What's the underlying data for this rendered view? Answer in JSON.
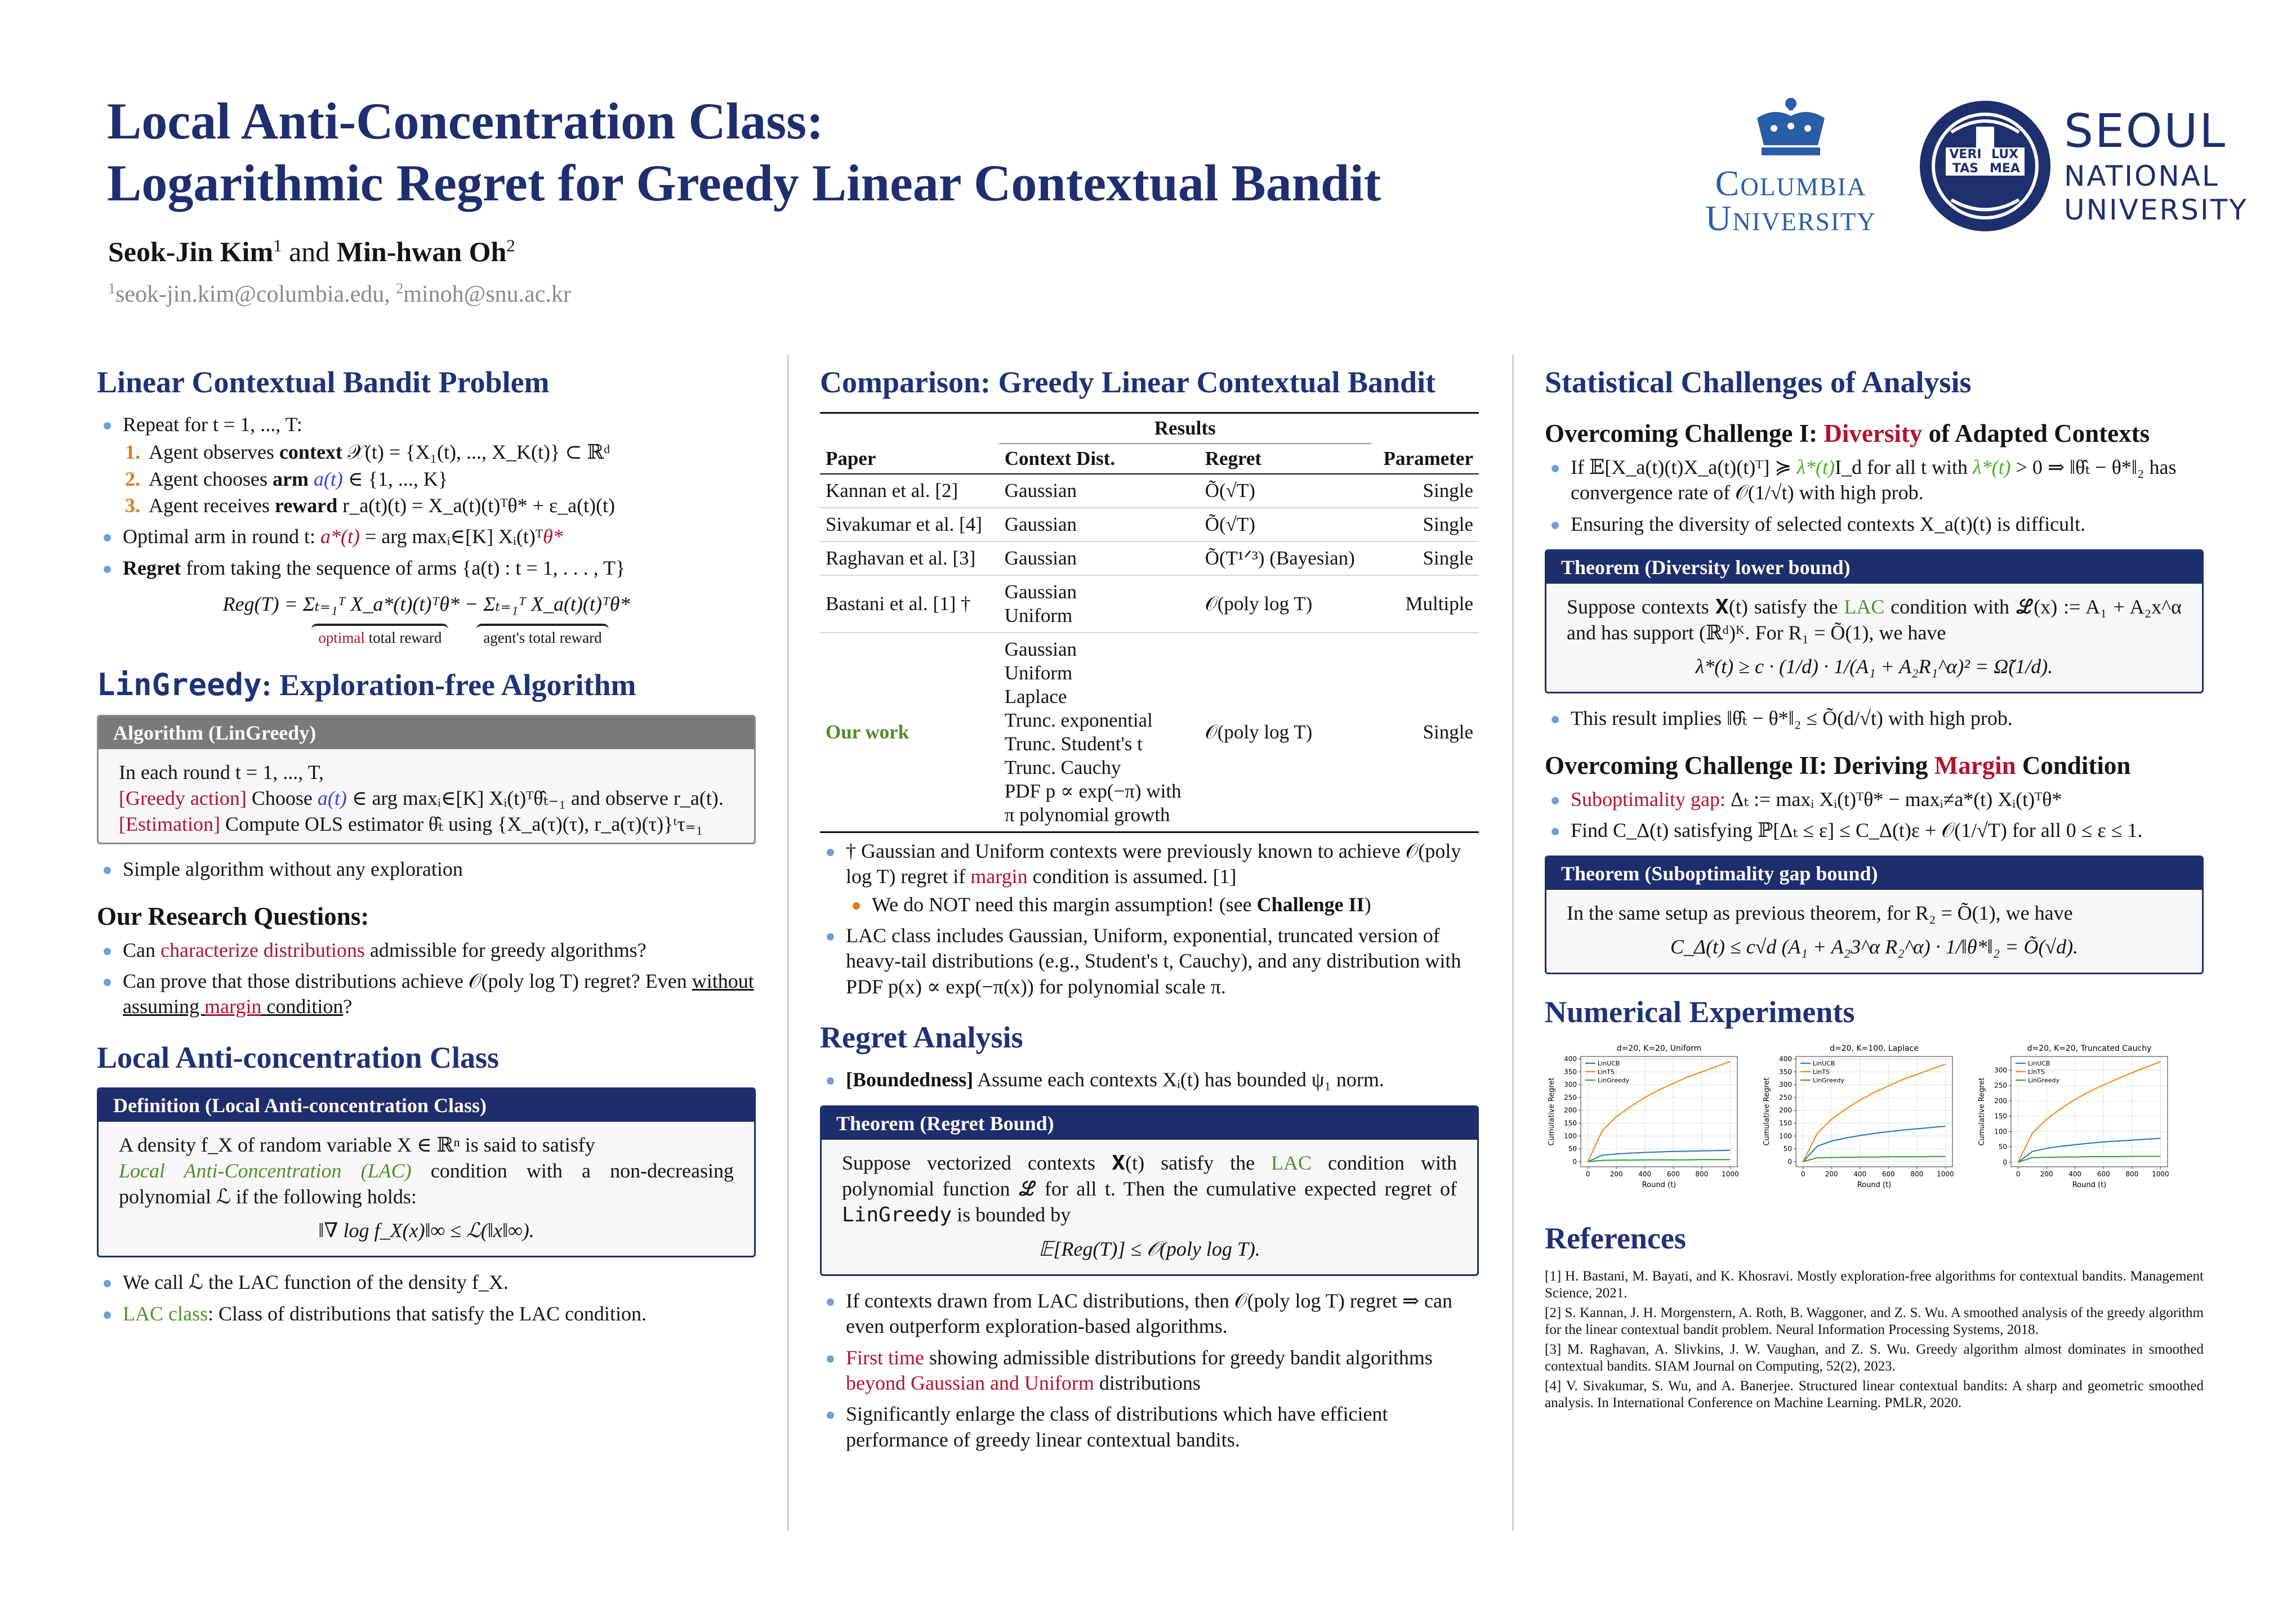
{
  "header": {
    "title": [
      "Local Anti-Concentration Class:",
      "Logarithmic Regret for Greedy Linear Contextual Bandit"
    ],
    "authors": [
      {
        "text": "Seok-Jin Kim",
        "bold": true
      },
      {
        "text": "1",
        "sup": true
      },
      " and ",
      {
        "text": "Min-hwan Oh",
        "bold": true
      },
      {
        "text": "2",
        "sup": true
      }
    ],
    "emails": [
      {
        "text": "1",
        "sup": true
      },
      "seok-jin.kim@columbia.edu, ",
      {
        "text": "2",
        "sup": true
      },
      "minoh@snu.ac.kr"
    ],
    "columbia": [
      "Columbia",
      "University"
    ],
    "snu": [
      "SEOUL",
      "NATIONAL",
      "UNIVERSITY"
    ],
    "snu_emblem": [
      "VERI",
      "LUX",
      "TAS",
      "MEA"
    ]
  },
  "columns": [
    [
      {
        "heading": "Linear Contextual Bandit Problem"
      },
      {
        "bullets": [
          {
            "text": "Repeat for t = 1, ..., T:",
            "sub": [
              {
                "marker": "1.",
                "text": [
                  "Agent observes ",
                  {
                    "text": "context",
                    "bold": true
                  },
                  " 𝒳(t) = {X₁(t), ..., X_K(t)} ⊂ ℝᵈ"
                ]
              },
              {
                "marker": "2.",
                "text": [
                  "Agent chooses ",
                  {
                    "text": "arm",
                    "bold": true
                  },
                  " ",
                  {
                    "text": "a(t)",
                    "color": "#3445d8",
                    "italic": true
                  },
                  " ∈ {1, ..., K}"
                ]
              },
              {
                "marker": "3.",
                "text": [
                  "Agent receives ",
                  {
                    "text": "reward",
                    "bold": true
                  },
                  " r_a(t)(t) = X_a(t)(t)ᵀθ* + ε_a(t)(t)"
                ]
              }
            ]
          },
          [
            "Optimal arm in round t: ",
            {
              "text": "a*(t)",
              "color": "#b0132f",
              "italic": true
            },
            " = arg maxᵢ∈[K] Xᵢ(t)ᵀ",
            {
              "text": "θ*",
              "color": "#b0132f",
              "italic": true
            }
          ],
          [
            {
              "text": "Regret",
              "bold": true
            },
            " from taking the sequence of arms {a(t) : t = 1, . . . , T}"
          ]
        ]
      },
      {
        "equation": "Reg(T) = Σₜ₌₁ᵀ X_a*(t)(t)ᵀθ* − Σₜ₌₁ᵀ X_a(t)(t)ᵀθ*"
      },
      {
        "underbraces": [
          [
            {
              "text": "optimal",
              "color": "#b0132f"
            },
            " total reward"
          ],
          "agent's total reward"
        ]
      },
      {
        "heading": [
          {
            "text": "LinGreedy",
            "mono": true
          },
          ": Exploration-free Algorithm"
        ]
      },
      {
        "box": {
          "style": "gray",
          "title": "Algorithm (LinGreedy)",
          "lines": [
            "In each round t = 1, ..., T,",
            [
              {
                "text": "[Greedy action]",
                "color": "#b0132f"
              },
              " Choose ",
              {
                "text": "a(t)",
                "color": "#3445d8",
                "italic": true
              },
              " ∈ arg maxᵢ∈[K] Xᵢ(t)ᵀθ̂ₜ₋₁ and observe r_a(t)."
            ],
            [
              {
                "text": "[Estimation]",
                "color": "#b0132f"
              },
              " Compute OLS estimator θ̂ₜ using {X_a(τ)(τ), r_a(τ)(τ)}ᵗτ₌₁"
            ]
          ]
        }
      },
      {
        "bullets": [
          "Simple algorithm without any exploration"
        ]
      },
      {
        "subheading": "Our Research Questions:"
      },
      {
        "bullets": [
          [
            "Can ",
            {
              "text": "characterize distributions",
              "color": "#b0132f"
            },
            " admissible for greedy algorithms?"
          ],
          [
            "Can prove that those distributions achieve 𝒪(poly log T) regret? Even ",
            {
              "text": "without assuming ",
              "underline": true
            },
            {
              "text": "margin",
              "color": "#b0132f",
              "underline": true
            },
            {
              "text": " condition",
              "underline": true
            },
            "?"
          ]
        ]
      },
      {
        "heading": "Local Anti-concentration Class"
      },
      {
        "box": {
          "title": "Definition (Local Anti-concentration Class)",
          "lines": [
            "A density f_X of random variable X ∈ ℝⁿ is said to satisfy",
            [
              {
                "text": "Local Anti-Concentration (LAC)",
                "color": "#4f8f2a",
                "italic": true
              },
              " condition with a non-decreasing polynomial ℒ if the following holds:"
            ]
          ],
          "equation": "‖∇ log f_X(x)‖∞ ≤ ℒ(‖x‖∞)."
        }
      },
      {
        "bullets": [
          "We call ℒ the LAC function of the density f_X.",
          [
            {
              "text": "LAC class",
              "color": "#4f8f2a"
            },
            ": Class of distributions that satisfy the LAC condition."
          ]
        ]
      }
    ],
    [
      {
        "heading": "Comparison: Greedy Linear Contextual Bandit"
      },
      {
        "table": {
          "group": "Results",
          "columns": [
            "Paper",
            "Context Dist.",
            "Regret",
            "Parameter"
          ],
          "rows": [
            [
              "Kannan et al. [2]",
              "Gaussian",
              "Õ(√T)",
              "Single"
            ],
            [
              "Sivakumar et al. [4]",
              "Gaussian",
              "Õ(√T)",
              "Single"
            ],
            [
              "Raghavan et al. [3]",
              "Gaussian",
              "Õ(T¹ᐟ³) (Bayesian)",
              "Single"
            ],
            [
              "Bastani et al. [1] †",
              "Gaussian\nUniform",
              "𝒪(poly log T)",
              "Multiple"
            ],
            [
              {
                "text": "Our work",
                "color": "#4f8f2a",
                "bold": true
              },
              "Gaussian\nUniform\nLaplace\nTrunc. exponential\nTrunc. Student's t\nTrunc. Cauchy\nPDF p ∝ exp(−π) with\nπ polynomial growth",
              "𝒪(poly log T)",
              "Single"
            ]
          ]
        }
      },
      {
        "bullets": [
          {
            "text": [
              "† Gaussian and Uniform contexts were previously known to achieve 𝒪(poly log T) regret if ",
              {
                "text": "margin",
                "color": "#b0132f"
              },
              " condition is assumed. [1]"
            ],
            "sub": [
              {
                "bullet_color": "#e07b1a",
                "text": [
                  "We do NOT need this margin assumption! (see ",
                  {
                    "text": "Challenge II",
                    "bold": true
                  },
                  ")"
                ]
              }
            ]
          },
          "LAC class includes Gaussian, Uniform, exponential, truncated version of heavy-tail distributions (e.g., Student's t, Cauchy), and any distribution with PDF p(x) ∝ exp(−π(x)) for polynomial scale π."
        ]
      },
      {
        "heading": "Regret Analysis"
      },
      {
        "bullets": [
          [
            {
              "text": "[Boundedness]",
              "bold": true
            },
            " Assume each contexts Xᵢ(t) has bounded ψ₁ norm."
          ]
        ]
      },
      {
        "box": {
          "title": "Theorem (Regret Bound)",
          "lines": [
            [
              "Suppose vectorized contexts 𝐗(t) satisfy the ",
              {
                "text": "LAC",
                "color": "#4f8f2a"
              },
              " condition with polynomial function ℒ for all t. Then the cumulative expected regret of ",
              {
                "text": "LinGreedy",
                "mono": true
              },
              " is bounded by"
            ]
          ],
          "equation": "𝔼[Reg(T)] ≤ 𝒪(poly log T)."
        }
      },
      {
        "bullets": [
          "If contexts drawn from LAC distributions, then 𝒪(poly log T) regret ⇒ can even outperform exploration-based algorithms.",
          [
            {
              "text": "First time",
              "color": "#b0132f"
            },
            " showing admissible distributions for greedy bandit algorithms ",
            {
              "text": "beyond Gaussian and Uniform",
              "color": "#b0132f"
            },
            " distributions"
          ],
          "Significantly enlarge the class of distributions which have efficient performance of greedy linear contextual bandits."
        ]
      }
    ],
    [
      {
        "heading": "Statistical Challenges of Analysis"
      },
      {
        "subheading": [
          "Overcoming Challenge I: ",
          {
            "text": "Diversity",
            "color": "#b0132f"
          },
          " of Adapted Contexts"
        ]
      },
      {
        "bullets": [
          [
            "If 𝔼[X_a(t)(t)X_a(t)(t)ᵀ] ≽ ",
            {
              "text": "λ*(t)",
              "color": "#4fae2a",
              "italic": true
            },
            "I_d for all t with ",
            {
              "text": "λ*(t)",
              "color": "#4fae2a",
              "italic": true
            },
            " > 0 ⇒ ‖θ̂ₜ − θ*‖₂ has convergence rate of 𝒪(1/√t) with high prob."
          ],
          "Ensuring the diversity of selected contexts X_a(t)(t) is difficult."
        ]
      },
      {
        "box": {
          "title": "Theorem (Diversity lower bound)",
          "lines": [
            [
              "Suppose contexts 𝐗(t) satisfy the ",
              {
                "text": "LAC",
                "color": "#4f8f2a"
              },
              " condition with ℒ(x) := A₁ + A₂x^α and has support (ℝᵈ)ᴷ. For R₁ = Õ(1), we have"
            ]
          ],
          "equation": "λ*(t) ≥ c · (1/d) · 1/(A₁ + A₂R₁^α)² = Ω̃(1/d)."
        }
      },
      {
        "bullets": [
          "This result implies ‖θ̂ₜ − θ*‖₂ ≤ Õ(d/√t) with high prob."
        ]
      },
      {
        "subheading": [
          "Overcoming Challenge II: Deriving ",
          {
            "text": "Margin",
            "color": "#b0132f"
          },
          " Condition"
        ]
      },
      {
        "bullets": [
          [
            {
              "text": "Suboptimality gap:",
              "color": "#b0132f"
            },
            " Δₜ := maxᵢ Xᵢ(t)ᵀθ* − maxᵢ≠a*(t) Xᵢ(t)ᵀθ*"
          ],
          "Find C_Δ(t) satisfying ℙ[Δₜ ≤ ε] ≤ C_Δ(t)ε + 𝒪(1/√T) for all 0 ≤ ε ≤ 1."
        ]
      },
      {
        "box": {
          "title": "Theorem (Suboptimality gap bound)",
          "lines": [
            "In the same setup as previous theorem, for R₂ = Õ(1), we have"
          ],
          "equation": "C_Δ(t) ≤ c√d (A₁ + A₂3^α R₂^α) · 1/‖θ*‖₂ = Õ(√d)."
        }
      },
      {
        "heading": "Numerical Experiments"
      },
      {
        "charts": [
          {
            "type": "line",
            "title": "d=20, K=20, Uniform",
            "xlabel": "Round (t)",
            "ylabel": "Cumulative Regret",
            "x": [
              0,
              100,
              200,
              300,
              400,
              500,
              600,
              700,
              800,
              900,
              1000
            ],
            "xlim": [
              -50,
              1050
            ],
            "xticks": [
              0,
              200,
              400,
              600,
              800,
              1000
            ],
            "ylim": [
              -20,
              410
            ],
            "yticks": [
              0,
              50,
              100,
              150,
              200,
              250,
              300,
              350,
              400
            ],
            "grid": true,
            "series": [
              {
                "name": "LinUCB",
                "color": "#1f77b4",
                "values": [
                  0,
                  25,
                  30,
                  33,
                  36,
                  38,
                  40,
                  41,
                  42,
                  43,
                  44
                ]
              },
              {
                "name": "LinTS",
                "color": "#ff7f0e",
                "values": [
                  0,
                  120,
                  175,
                  215,
                  250,
                  280,
                  305,
                  330,
                  350,
                  370,
                  390
                ]
              },
              {
                "name": "LinGreedy",
                "color": "#2ca02c",
                "values": [
                  0,
                  5,
                  6,
                  6,
                  7,
                  7,
                  7,
                  7,
                  8,
                  8,
                  8
                ]
              }
            ]
          },
          {
            "type": "line",
            "title": "d=20, K=100, Laplace",
            "xlabel": "Round (t)",
            "ylabel": "Cumulative Regret",
            "x": [
              0,
              100,
              200,
              300,
              400,
              500,
              600,
              700,
              800,
              900,
              1000
            ],
            "xlim": [
              -50,
              1050
            ],
            "xticks": [
              0,
              200,
              400,
              600,
              800,
              1000
            ],
            "ylim": [
              -20,
              410
            ],
            "yticks": [
              0,
              50,
              100,
              150,
              200,
              250,
              300,
              350,
              400
            ],
            "grid": true,
            "series": [
              {
                "name": "LinUCB",
                "color": "#1f77b4",
                "values": [
                  0,
                  60,
                  80,
                  92,
                  102,
                  110,
                  117,
                  123,
                  128,
                  133,
                  138
                ]
              },
              {
                "name": "LinTS",
                "color": "#ff7f0e",
                "values": [
                  0,
                  110,
                  165,
                  205,
                  240,
                  270,
                  295,
                  320,
                  340,
                  360,
                  380
                ]
              },
              {
                "name": "LinGreedy",
                "color": "#2ca02c",
                "values": [
                  0,
                  15,
                  16,
                  17,
                  18,
                  18,
                  19,
                  19,
                  19,
                  20,
                  20
                ]
              }
            ]
          },
          {
            "type": "line",
            "title": "d=20, K=20, Truncated Cauchy",
            "xlabel": "Round (t)",
            "ylabel": "Cumulative Regret",
            "x": [
              0,
              100,
              200,
              300,
              400,
              500,
              600,
              700,
              800,
              900,
              1000
            ],
            "xlim": [
              -50,
              1050
            ],
            "xticks": [
              0,
              200,
              400,
              600,
              800,
              1000
            ],
            "ylim": [
              -15,
              345
            ],
            "yticks": [
              0,
              50,
              100,
              150,
              200,
              250,
              300
            ],
            "grid": true,
            "series": [
              {
                "name": "LinUCB",
                "color": "#1f77b4",
                "values": [
                  0,
                  35,
                  45,
                  52,
                  57,
                  62,
                  66,
                  69,
                  72,
                  75,
                  78
                ]
              },
              {
                "name": "LinTS",
                "color": "#ff7f0e",
                "values": [
                  0,
                  95,
                  140,
                  175,
                  205,
                  230,
                  252,
                  272,
                  292,
                  310,
                  328
                ]
              },
              {
                "name": "LinGreedy",
                "color": "#2ca02c",
                "values": [
                  0,
                  15,
                  16,
                  17,
                  17,
                  18,
                  18,
                  18,
                  19,
                  19,
                  19
                ]
              }
            ]
          }
        ]
      },
      {
        "heading": "References"
      },
      {
        "references": [
          "[1] H. Bastani, M. Bayati, and K. Khosravi. Mostly exploration-free algorithms for contextual bandits. Management Science, 2021.",
          "[2] S. Kannan, J. H. Morgenstern, A. Roth, B. Waggoner, and Z. S. Wu. A smoothed analysis of the greedy algorithm for the linear contextual bandit problem. Neural Information Processing Systems, 2018.",
          "[3] M. Raghavan, A. Slivkins, J. W. Vaughan, and Z. S. Wu. Greedy algorithm almost dominates in smoothed contextual bandits. SIAM Journal on Computing, 52(2), 2023.",
          "[4] V. Sivakumar, S. Wu, and A. Banerjee. Structured linear contextual bandits: A sharp and geometric smoothed analysis. In International Conference on Machine Learning. PMLR, 2020."
        ]
      }
    ]
  ]
}
